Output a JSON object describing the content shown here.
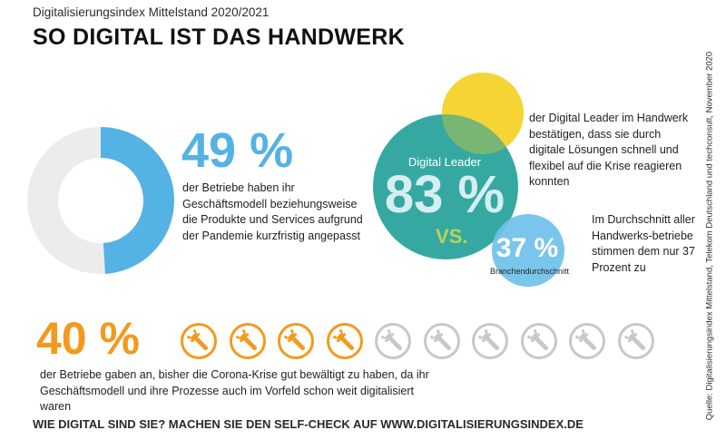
{
  "header": {
    "subtitle": "Digitalisierungsindex Mittelstand 2020/2021",
    "title": "SO DIGITAL IST DAS HANDWERK"
  },
  "stat_adapted": {
    "value": "49 %",
    "percent": 49,
    "description": "der Betriebe haben ihr Geschäftsmodell beziehungsweise die Produkte und Services aufgrund der Pandemie kurzfristig angepasst"
  },
  "comparison": {
    "leader_label": "Digital Leader",
    "leader_value": "83 %",
    "vs_label": "VS.",
    "average_value": "37 %",
    "average_label": "Branchendurchschnitt",
    "leader_text": "der Digital Leader im Handwerk bestätigen, dass sie durch digitale Lösungen schnell und flexibel auf die Krise reagieren konnten",
    "average_text": "Im Durchschnitt aller Handwerks-betriebe stimmen dem nur 37 Prozent zu"
  },
  "stat_crisis": {
    "value": "40 %",
    "highlighted": 4,
    "total": 10,
    "description": "der Betriebe gaben an, bisher die Corona-Krise gut bewältigt zu haben, da ihr Geschäftsmodell und ihre Prozesse auch im Vorfeld schon weit digitalisiert waren"
  },
  "footer": {
    "cta": "WIE DIGITAL SIND SIE? MACHEN SIE DEN SELF-CHECK AUF WWW.DIGITALISIERUNGSINDEX.DE"
  },
  "source": "Quelle: Digitalisierungsindex Mittelstand, Telekom Deutschland und techconsult, November 2020",
  "colors": {
    "blue": "#55b2e4",
    "grey": "#ececec",
    "orange": "#f39a1e",
    "teal": "#2aa49c",
    "yellow": "#f5d435",
    "lime": "#b8d25a",
    "light_grey_icon": "#c8c8c8"
  },
  "icons": {
    "wrench": "wrench-icon"
  }
}
